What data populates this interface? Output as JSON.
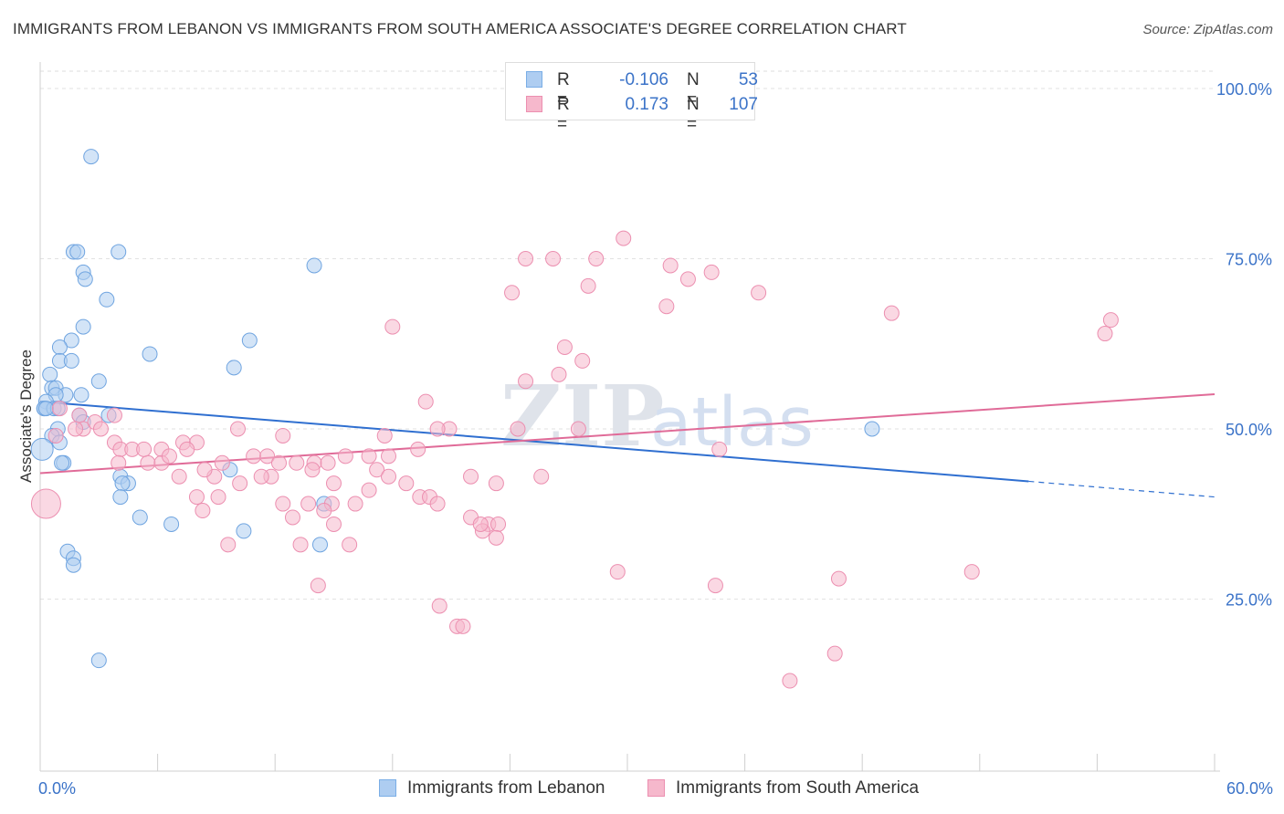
{
  "title": "IMMIGRANTS FROM LEBANON VS IMMIGRANTS FROM SOUTH AMERICA ASSOCIATE'S DEGREE CORRELATION CHART",
  "source": "Source: ZipAtlas.com",
  "watermark": {
    "zip": "ZIP",
    "atlas": "atlas"
  },
  "legend_top": {
    "r_label": "R =",
    "n_label": "N =",
    "rows": [
      {
        "r": "-0.106",
        "n": "53",
        "color": "#aecdf1"
      },
      {
        "r": "0.173",
        "n": "107",
        "color": "#f6b8cc"
      }
    ]
  },
  "legend_bottom": [
    {
      "label": "Immigrants from Lebanon",
      "color": "#aecdf1"
    },
    {
      "label": "Immigrants from South America",
      "color": "#f6b8cc"
    }
  ],
  "chart_data": {
    "type": "scatter",
    "title": "IMMIGRANTS FROM LEBANON VS IMMIGRANTS FROM SOUTH AMERICA ASSOCIATE'S DEGREE CORRELATION CHART",
    "xlabel": "",
    "ylabel": "Associate's Degree",
    "xlim": [
      0,
      60
    ],
    "ylim": [
      0,
      105
    ],
    "x_tick_labels": [
      "0.0%",
      "60.0%"
    ],
    "y_ticks": [
      25,
      50,
      75,
      100
    ],
    "y_tick_labels": [
      "25.0%",
      "50.0%",
      "75.0%",
      "100.0%"
    ],
    "grid": true,
    "series": [
      {
        "name": "Immigrants from Lebanon",
        "color": "#6fa4e0",
        "fill": "#aecdf1",
        "points": [
          [
            2.6,
            90
          ],
          [
            1.7,
            76
          ],
          [
            1.9,
            76
          ],
          [
            4.0,
            76
          ],
          [
            14.0,
            74
          ],
          [
            2.2,
            73
          ],
          [
            2.3,
            72
          ],
          [
            3.4,
            69
          ],
          [
            2.2,
            65
          ],
          [
            10.7,
            63
          ],
          [
            1.6,
            63
          ],
          [
            1.0,
            62
          ],
          [
            1.0,
            60
          ],
          [
            5.6,
            61
          ],
          [
            1.6,
            60
          ],
          [
            9.9,
            59
          ],
          [
            0.5,
            58
          ],
          [
            3.0,
            57
          ],
          [
            0.6,
            56
          ],
          [
            0.8,
            56
          ],
          [
            1.3,
            55
          ],
          [
            0.8,
            55
          ],
          [
            2.1,
            55
          ],
          [
            0.3,
            54
          ],
          [
            0.2,
            53
          ],
          [
            0.2,
            53
          ],
          [
            0.7,
            53
          ],
          [
            0.9,
            53
          ],
          [
            3.5,
            52
          ],
          [
            2.0,
            52
          ],
          [
            2.2,
            51
          ],
          [
            0.9,
            50
          ],
          [
            0.6,
            49
          ],
          [
            1.0,
            48
          ],
          [
            1.2,
            45
          ],
          [
            1.1,
            45
          ],
          [
            9.7,
            44
          ],
          [
            4.1,
            43
          ],
          [
            4.5,
            42
          ],
          [
            4.2,
            42
          ],
          [
            4.1,
            40
          ],
          [
            5.1,
            37
          ],
          [
            6.7,
            36
          ],
          [
            10.4,
            35
          ],
          [
            14.5,
            39
          ],
          [
            14.3,
            33
          ],
          [
            1.4,
            32
          ],
          [
            1.7,
            31
          ],
          [
            1.7,
            30
          ],
          [
            3.0,
            16
          ],
          [
            42.5,
            50
          ],
          [
            0.1,
            47
          ],
          [
            0.3,
            53
          ]
        ],
        "trend": {
          "x1": 0,
          "y1": 54,
          "x2": 50.5,
          "y2": 42.3,
          "dash_to_x": 60,
          "dash_to_y": 40
        }
      },
      {
        "name": "Immigrants from South America",
        "color": "#ec8fb0",
        "fill": "#f6b8cc",
        "points": [
          [
            29.8,
            78
          ],
          [
            28.4,
            75
          ],
          [
            24.8,
            75
          ],
          [
            26.2,
            75
          ],
          [
            32.2,
            74
          ],
          [
            33.1,
            72
          ],
          [
            34.3,
            73
          ],
          [
            24.1,
            70
          ],
          [
            28.0,
            71
          ],
          [
            36.7,
            70
          ],
          [
            32.0,
            68
          ],
          [
            43.5,
            67
          ],
          [
            54.7,
            66
          ],
          [
            54.4,
            64
          ],
          [
            18.0,
            65
          ],
          [
            26.8,
            62
          ],
          [
            27.7,
            60
          ],
          [
            26.5,
            58
          ],
          [
            24.8,
            57
          ],
          [
            19.7,
            54
          ],
          [
            1.0,
            53
          ],
          [
            2.0,
            52
          ],
          [
            3.8,
            52
          ],
          [
            2.2,
            50
          ],
          [
            2.8,
            51
          ],
          [
            1.8,
            50
          ],
          [
            7.3,
            48
          ],
          [
            8.0,
            48
          ],
          [
            10.1,
            50
          ],
          [
            12.4,
            49
          ],
          [
            17.6,
            49
          ],
          [
            20.9,
            50
          ],
          [
            20.3,
            50
          ],
          [
            24.4,
            50
          ],
          [
            27.5,
            50
          ],
          [
            3.8,
            48
          ],
          [
            4.1,
            47
          ],
          [
            4.7,
            47
          ],
          [
            6.2,
            47
          ],
          [
            7.5,
            47
          ],
          [
            10.9,
            46
          ],
          [
            11.6,
            46
          ],
          [
            12.2,
            45
          ],
          [
            15.6,
            46
          ],
          [
            16.8,
            46
          ],
          [
            17.8,
            46
          ],
          [
            5.5,
            45
          ],
          [
            6.2,
            45
          ],
          [
            4.0,
            45
          ],
          [
            9.3,
            45
          ],
          [
            13.1,
            45
          ],
          [
            14.0,
            45
          ],
          [
            14.7,
            45
          ],
          [
            7.1,
            43
          ],
          [
            11.8,
            43
          ],
          [
            17.2,
            44
          ],
          [
            17.8,
            43
          ],
          [
            10.2,
            42
          ],
          [
            8.9,
            43
          ],
          [
            11.3,
            43
          ],
          [
            13.9,
            44
          ],
          [
            15.0,
            42
          ],
          [
            22.0,
            43
          ],
          [
            23.3,
            42
          ],
          [
            25.6,
            43
          ],
          [
            18.7,
            42
          ],
          [
            8.0,
            40
          ],
          [
            9.1,
            40
          ],
          [
            13.7,
            39
          ],
          [
            14.9,
            39
          ],
          [
            14.5,
            38
          ],
          [
            15.0,
            36
          ],
          [
            16.1,
            39
          ],
          [
            19.4,
            40
          ],
          [
            19.9,
            40
          ],
          [
            16.8,
            41
          ],
          [
            20.3,
            39
          ],
          [
            12.4,
            39
          ],
          [
            8.3,
            38
          ],
          [
            12.9,
            37
          ],
          [
            22.0,
            37
          ],
          [
            22.9,
            36
          ],
          [
            23.4,
            36
          ],
          [
            22.6,
            35
          ],
          [
            23.3,
            34
          ],
          [
            9.6,
            33
          ],
          [
            13.3,
            33
          ],
          [
            15.8,
            33
          ],
          [
            14.2,
            27
          ],
          [
            29.5,
            29
          ],
          [
            34.5,
            27
          ],
          [
            40.8,
            28
          ],
          [
            47.6,
            29
          ],
          [
            20.4,
            24
          ],
          [
            21.3,
            21
          ],
          [
            21.6,
            21
          ],
          [
            40.6,
            17
          ],
          [
            38.3,
            13
          ],
          [
            3.1,
            50
          ],
          [
            5.3,
            47
          ],
          [
            6.6,
            46
          ],
          [
            19.3,
            47
          ],
          [
            0.8,
            49
          ],
          [
            8.4,
            44
          ],
          [
            0.3,
            39
          ],
          [
            34.7,
            47
          ],
          [
            22.5,
            36
          ]
        ],
        "trend": {
          "x1": 0,
          "y1": 43.5,
          "x2": 60,
          "y2": 55.1
        }
      }
    ]
  }
}
